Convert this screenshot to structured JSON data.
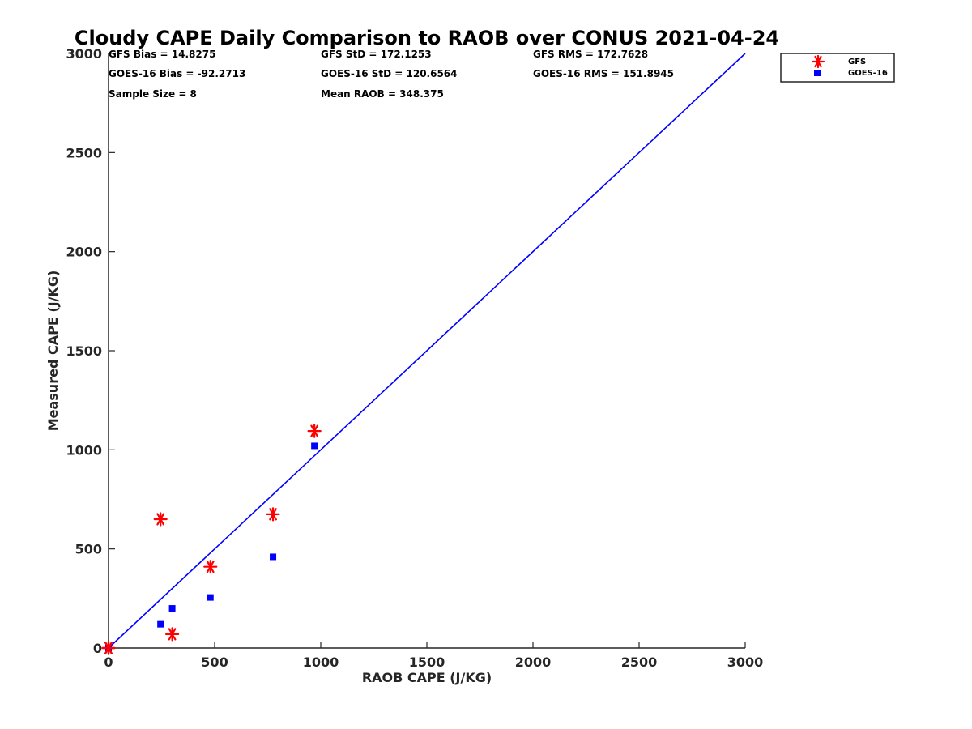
{
  "chart_data": {
    "type": "scatter",
    "title": "Cloudy CAPE Daily Comparison to RAOB over CONUS 2021-04-24",
    "xlabel": "RAOB CAPE (J/KG)",
    "ylabel": "Measured CAPE (J/KG)",
    "xlim": [
      0,
      3000
    ],
    "ylim": [
      0,
      3000
    ],
    "xticks": [
      "0",
      "500",
      "1000",
      "1500",
      "2000",
      "2500",
      "3000"
    ],
    "yticks": [
      "0",
      "500",
      "1000",
      "1500",
      "2000",
      "2500",
      "3000"
    ],
    "grid": false,
    "legend_position": "outside top-right",
    "stats": [
      "GFS Bias = 14.8275",
      "GFS StD = 172.1253",
      "GFS RMS = 172.7628",
      "GOES-16 Bias = -92.2713",
      "GOES-16 StD = 120.6564",
      "GOES-16 RMS = 151.8945",
      "Sample Size = 8",
      "Mean RAOB = 348.375"
    ],
    "reference_line": {
      "x": [
        0,
        3000
      ],
      "y": [
        0,
        3000
      ],
      "color": "#0000ff"
    },
    "series": [
      {
        "name": "GFS",
        "marker": "asterisk",
        "color": "#ff0000",
        "x": [
          0,
          0,
          245,
          300,
          480,
          775,
          970,
          0
        ],
        "y": [
          0,
          0,
          650,
          70,
          410,
          675,
          1095,
          0
        ]
      },
      {
        "name": "GOES-16",
        "marker": "square",
        "color": "#0000ff",
        "x": [
          0,
          0,
          245,
          300,
          480,
          775,
          970,
          0
        ],
        "y": [
          0,
          0,
          120,
          200,
          255,
          460,
          1020,
          0
        ]
      }
    ]
  }
}
